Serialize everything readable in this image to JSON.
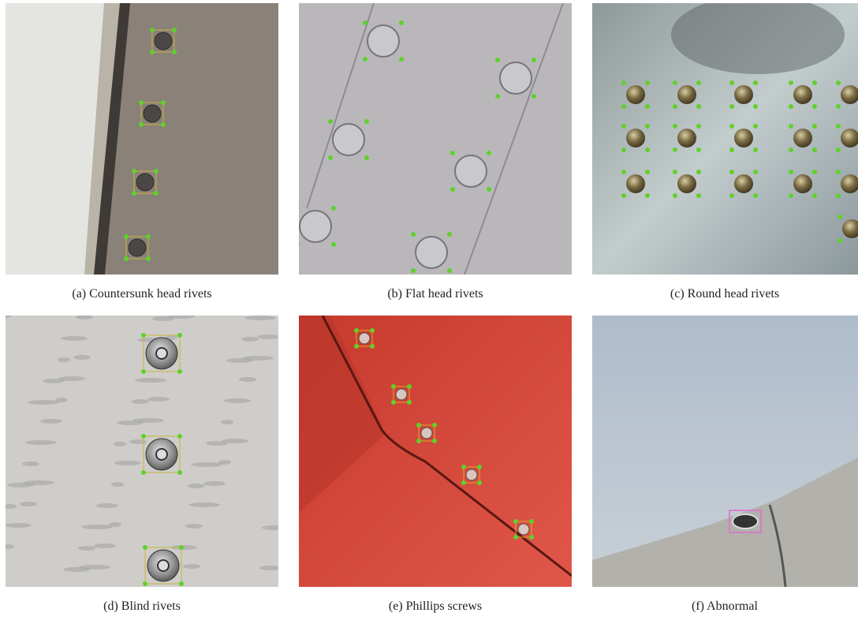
{
  "figure": {
    "panels": [
      {
        "caption": "(a) Countersunk head rivets"
      },
      {
        "caption": "(b) Flat head rivets"
      },
      {
        "caption": "(c) Round head rivets"
      },
      {
        "caption": "(d) Blind rivets"
      },
      {
        "caption": "(e) Phillips screws"
      },
      {
        "caption": "(f) Abnormal"
      }
    ]
  }
}
